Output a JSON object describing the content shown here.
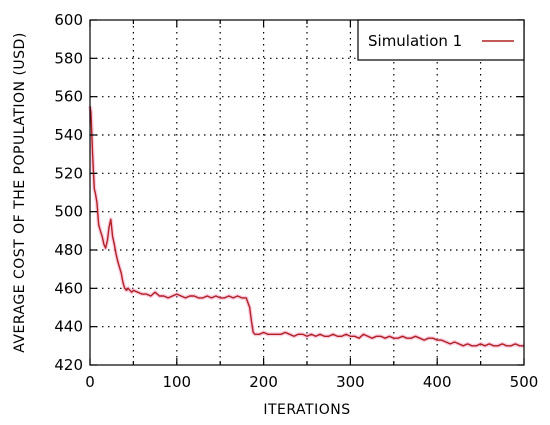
{
  "chart_data": {
    "type": "line",
    "title": "",
    "xlabel": "ITERATIONS",
    "ylabel": "AVERAGE COST OF THE POPULATION (USD)",
    "xlim": [
      0,
      500
    ],
    "ylim": [
      420,
      600
    ],
    "xticks": [
      0,
      100,
      200,
      300,
      400,
      500
    ],
    "yticks": [
      420,
      440,
      460,
      480,
      500,
      520,
      540,
      560,
      580,
      600
    ],
    "grid": true,
    "legend_position": "top-right",
    "series": [
      {
        "name": "Simulation 1",
        "color": "#b22222",
        "x": [
          0,
          1,
          2,
          3,
          4,
          5,
          6,
          8,
          10,
          12,
          14,
          16,
          18,
          20,
          22,
          24,
          26,
          28,
          30,
          32,
          34,
          36,
          38,
          40,
          42,
          44,
          46,
          48,
          50,
          55,
          60,
          65,
          70,
          75,
          80,
          85,
          90,
          95,
          100,
          105,
          110,
          115,
          120,
          125,
          130,
          135,
          140,
          145,
          150,
          155,
          160,
          165,
          170,
          175,
          180,
          184,
          186,
          188,
          190,
          195,
          200,
          205,
          210,
          215,
          220,
          225,
          230,
          235,
          240,
          245,
          250,
          255,
          260,
          265,
          270,
          275,
          280,
          285,
          290,
          295,
          300,
          305,
          310,
          315,
          320,
          325,
          330,
          335,
          340,
          345,
          350,
          355,
          360,
          365,
          370,
          375,
          380,
          385,
          390,
          395,
          400,
          405,
          410,
          415,
          420,
          425,
          430,
          435,
          440,
          445,
          450,
          455,
          460,
          465,
          470,
          475,
          480,
          485,
          490,
          495,
          500
        ],
        "y": [
          555,
          552,
          542,
          530,
          520,
          512,
          510,
          505,
          493,
          490,
          487,
          483,
          481,
          485,
          492,
          496,
          487,
          483,
          478,
          474,
          471,
          468,
          463,
          460,
          459,
          460,
          459,
          458,
          459,
          458,
          457,
          457,
          456,
          458,
          456,
          456,
          455,
          456,
          457,
          456,
          455,
          456,
          456,
          455,
          455,
          456,
          455,
          456,
          455,
          455,
          456,
          455,
          456,
          455,
          455,
          450,
          443,
          437,
          436,
          436,
          437,
          436,
          436,
          436,
          436,
          437,
          436,
          435,
          436,
          436,
          435,
          436,
          435,
          436,
          435,
          435,
          436,
          435,
          435,
          436,
          435,
          435,
          434,
          436,
          435,
          434,
          435,
          435,
          434,
          435,
          434,
          434,
          435,
          434,
          434,
          435,
          434,
          433,
          434,
          434,
          433,
          433,
          432,
          431,
          432,
          431,
          430,
          431,
          430,
          430,
          431,
          430,
          431,
          430,
          430,
          431,
          430,
          430,
          431,
          430,
          430
        ]
      }
    ]
  }
}
